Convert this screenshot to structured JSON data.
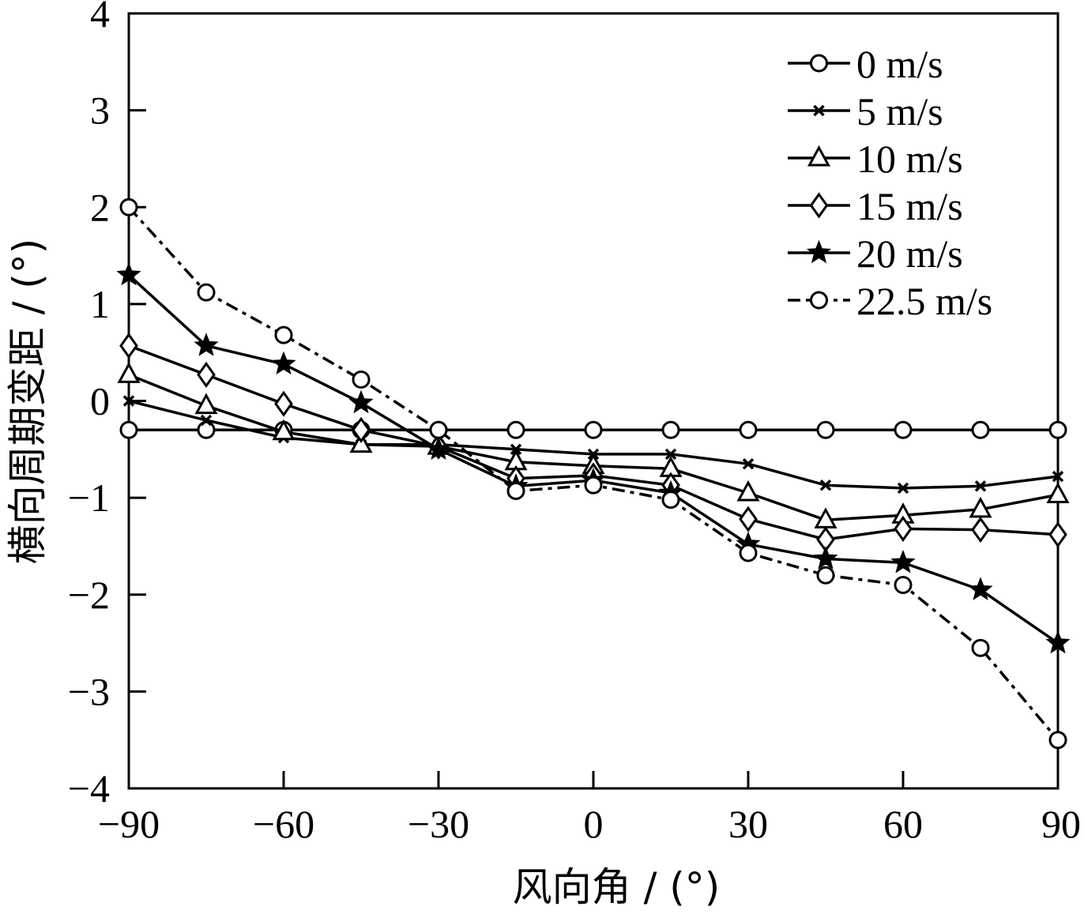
{
  "chart_data": {
    "type": "line",
    "xlabel": "风向角 / (°)",
    "ylabel": "横向周期变距 / (°)",
    "xlim": [
      -90,
      90
    ],
    "ylim": [
      -4,
      4
    ],
    "xticks": [
      -90,
      -60,
      -30,
      0,
      30,
      60,
      90
    ],
    "yticks": [
      -4,
      -3,
      -2,
      -1,
      0,
      1,
      2,
      3,
      4
    ],
    "xtick_labels": [
      "−90",
      "−60",
      "−30",
      "0",
      "30",
      "60",
      "90"
    ],
    "ytick_labels": [
      "−4",
      "−3",
      "−2",
      "−1",
      "0",
      "1",
      "2",
      "3",
      "4"
    ],
    "grid": false,
    "legend_position": "top-right",
    "x": [
      -90,
      -75,
      -60,
      -45,
      -30,
      -15,
      0,
      15,
      30,
      45,
      60,
      75,
      90
    ],
    "series": [
      {
        "name": "0 m/s",
        "marker": "circle",
        "dash": "solid",
        "values": [
          -0.3,
          -0.3,
          -0.3,
          -0.3,
          -0.3,
          -0.3,
          -0.3,
          -0.3,
          -0.3,
          -0.3,
          -0.3,
          -0.3,
          -0.3
        ]
      },
      {
        "name": "5 m/s",
        "marker": "x",
        "dash": "solid",
        "values": [
          0.0,
          -0.2,
          -0.38,
          -0.45,
          -0.45,
          -0.5,
          -0.55,
          -0.55,
          -0.65,
          -0.87,
          -0.9,
          -0.88,
          -0.78
        ]
      },
      {
        "name": "10 m/s",
        "marker": "triangle",
        "dash": "solid",
        "values": [
          0.27,
          -0.05,
          -0.32,
          -0.45,
          -0.47,
          -0.63,
          -0.67,
          -0.7,
          -0.95,
          -1.23,
          -1.18,
          -1.12,
          -0.97
        ]
      },
      {
        "name": "15 m/s",
        "marker": "diamond",
        "dash": "solid",
        "values": [
          0.57,
          0.27,
          -0.03,
          -0.3,
          -0.47,
          -0.8,
          -0.77,
          -0.87,
          -1.22,
          -1.43,
          -1.32,
          -1.33,
          -1.38
        ]
      },
      {
        "name": "20 m/s",
        "marker": "star",
        "dash": "solid",
        "values": [
          1.3,
          0.57,
          0.38,
          -0.02,
          -0.5,
          -0.88,
          -0.82,
          -0.95,
          -1.48,
          -1.63,
          -1.67,
          -1.95,
          -2.5
        ]
      },
      {
        "name": "22.5 m/s",
        "marker": "circle",
        "dash": "dashdot",
        "values": [
          2.0,
          1.12,
          0.68,
          0.22,
          -0.3,
          -0.93,
          -0.87,
          -1.02,
          -1.57,
          -1.8,
          -1.9,
          -2.55,
          -3.5
        ]
      }
    ]
  }
}
